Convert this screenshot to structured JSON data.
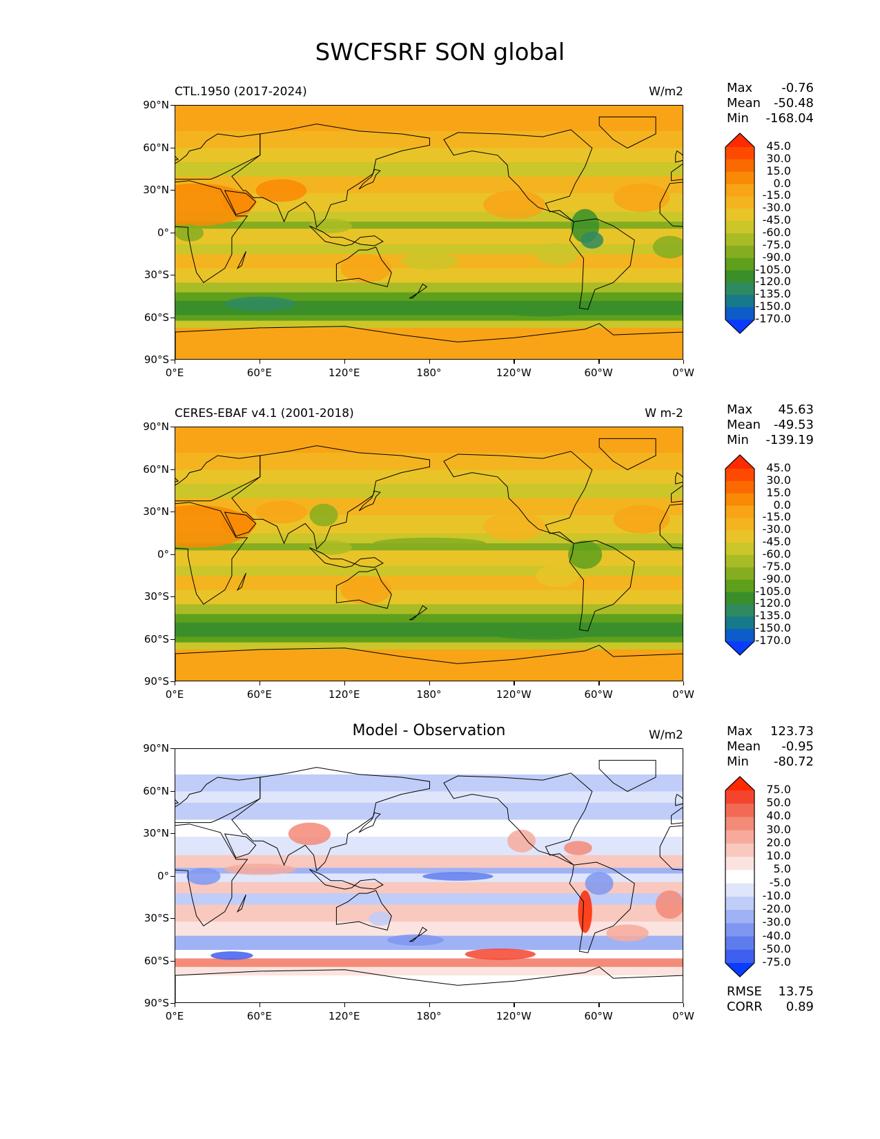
{
  "title": "SWCFSRF SON global",
  "x_ticks": [
    "0°E",
    "60°E",
    "120°E",
    "180°",
    "120°W",
    "60°W",
    "0°W"
  ],
  "y_ticks": [
    "90°N",
    "60°N",
    "30°N",
    "0°",
    "30°S",
    "60°S",
    "90°S"
  ],
  "panels": [
    {
      "title": "CTL.1950 (2017-2024)",
      "units": "W/m2",
      "stats": {
        "max_label": "Max",
        "max": "-0.76",
        "mean_label": "Mean",
        "mean": "-50.48",
        "min_label": "Min",
        "min": "-168.04"
      },
      "colorbar": {
        "levels": [
          "45.0",
          "30.0",
          "15.0",
          "0.0",
          "-15.0",
          "-30.0",
          "-45.0",
          "-60.0",
          "-75.0",
          "-90.0",
          "-105.0",
          "-120.0",
          "-135.0",
          "-150.0",
          "-170.0"
        ],
        "colors": [
          "#ff2a00",
          "#fe4a00",
          "#fb6a00",
          "#f98a05",
          "#f8a416",
          "#f4b41f",
          "#e9c428",
          "#cbc62a",
          "#aabc25",
          "#86ad20",
          "#5ea01c",
          "#3a8f2a",
          "#2f8a62",
          "#167a8a",
          "#0d5cc8",
          "#0a3cff"
        ]
      }
    },
    {
      "title": "CERES-EBAF v4.1 (2001-2018)",
      "units": "W m-2",
      "stats": {
        "max_label": "Max",
        "max": "45.63",
        "mean_label": "Mean",
        "mean": "-49.53",
        "min_label": "Min",
        "min": "-139.19"
      },
      "colorbar": {
        "levels": [
          "45.0",
          "30.0",
          "15.0",
          "0.0",
          "-15.0",
          "-30.0",
          "-45.0",
          "-60.0",
          "-75.0",
          "-90.0",
          "-105.0",
          "-120.0",
          "-135.0",
          "-150.0",
          "-170.0"
        ],
        "colors": [
          "#ff2a00",
          "#fe4a00",
          "#fb6a00",
          "#f98a05",
          "#f8a416",
          "#f4b41f",
          "#e9c428",
          "#cbc62a",
          "#aabc25",
          "#86ad20",
          "#5ea01c",
          "#3a8f2a",
          "#2f8a62",
          "#167a8a",
          "#0d5cc8",
          "#0a3cff"
        ]
      }
    },
    {
      "title": "Model - Observation",
      "units": "W/m2",
      "stats": {
        "max_label": "Max",
        "max": "123.73",
        "mean_label": "Mean",
        "mean": "-0.95",
        "min_label": "Min",
        "min": "-80.72"
      },
      "colorbar": {
        "levels": [
          "75.0",
          "50.0",
          "40.0",
          "30.0",
          "20.0",
          "10.0",
          "5.0",
          "-5.0",
          "-10.0",
          "-20.0",
          "-30.0",
          "-40.0",
          "-50.0",
          "-75.0"
        ],
        "colors": [
          "#ff2a00",
          "#f5442e",
          "#f26a55",
          "#f48a78",
          "#f7aa9c",
          "#f9c8bf",
          "#fbe4df",
          "#ffffff",
          "#dfe6fb",
          "#c0cdf8",
          "#9fb2f4",
          "#7f97f0",
          "#5f7cec",
          "#3f5ff0",
          "#0a3cff"
        ]
      },
      "extra": {
        "rmse_label": "RMSE",
        "rmse": "13.75",
        "corr_label": "CORR",
        "corr": "0.89"
      }
    }
  ],
  "chart_data": [
    {
      "type": "heatmap",
      "title": "CTL.1950 (2017-2024)",
      "units": "W/m2",
      "xlabel": "",
      "ylabel": "",
      "xlim": [
        0,
        360
      ],
      "ylim": [
        -90,
        90
      ],
      "stats": {
        "max": -0.76,
        "mean": -50.48,
        "min": -168.04
      },
      "contour_levels": [
        45,
        30,
        15,
        0,
        -15,
        -30,
        -45,
        -60,
        -75,
        -90,
        -105,
        -120,
        -135,
        -150,
        -170
      ]
    },
    {
      "type": "heatmap",
      "title": "CERES-EBAF v4.1 (2001-2018)",
      "units": "W m-2",
      "xlabel": "",
      "ylabel": "",
      "xlim": [
        0,
        360
      ],
      "ylim": [
        -90,
        90
      ],
      "stats": {
        "max": 45.63,
        "mean": -49.53,
        "min": -139.19
      },
      "contour_levels": [
        45,
        30,
        15,
        0,
        -15,
        -30,
        -45,
        -60,
        -75,
        -90,
        -105,
        -120,
        -135,
        -150,
        -170
      ]
    },
    {
      "type": "heatmap",
      "title": "Model - Observation",
      "units": "W/m2",
      "xlabel": "",
      "ylabel": "",
      "xlim": [
        0,
        360
      ],
      "ylim": [
        -90,
        90
      ],
      "stats": {
        "max": 123.73,
        "mean": -0.95,
        "min": -80.72,
        "rmse": 13.75,
        "corr": 0.89
      },
      "contour_levels": [
        75,
        50,
        40,
        30,
        20,
        10,
        5,
        -5,
        -10,
        -20,
        -30,
        -40,
        -50,
        -75
      ]
    }
  ]
}
